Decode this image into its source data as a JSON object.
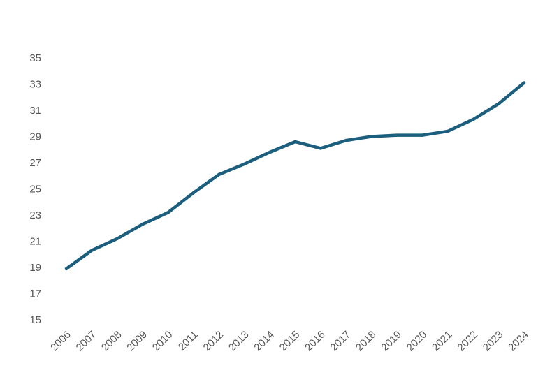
{
  "chart_data": {
    "type": "line",
    "title": "",
    "xlabel": "",
    "ylabel": "",
    "categories": [
      "2006",
      "2007",
      "2008",
      "2009",
      "2010",
      "2011",
      "2012",
      "2013",
      "2014",
      "2015",
      "2016",
      "2017",
      "2018",
      "2019",
      "2020",
      "2021",
      "2022",
      "2023",
      "2024"
    ],
    "series": [
      {
        "values": [
          18.9,
          20.3,
          21.2,
          22.3,
          23.2,
          24.7,
          26.1,
          26.9,
          27.8,
          28.6,
          28.1,
          28.7,
          29.0,
          29.1,
          29.1,
          29.4,
          30.3,
          31.5,
          33.1
        ]
      }
    ],
    "ylim": [
      15,
      35
    ],
    "yticks": [
      15,
      17,
      19,
      21,
      23,
      25,
      27,
      29,
      31,
      33,
      35
    ],
    "grid": false,
    "legend": "none",
    "colors": {
      "line": "#1b5e7d",
      "text": "#555555"
    }
  }
}
